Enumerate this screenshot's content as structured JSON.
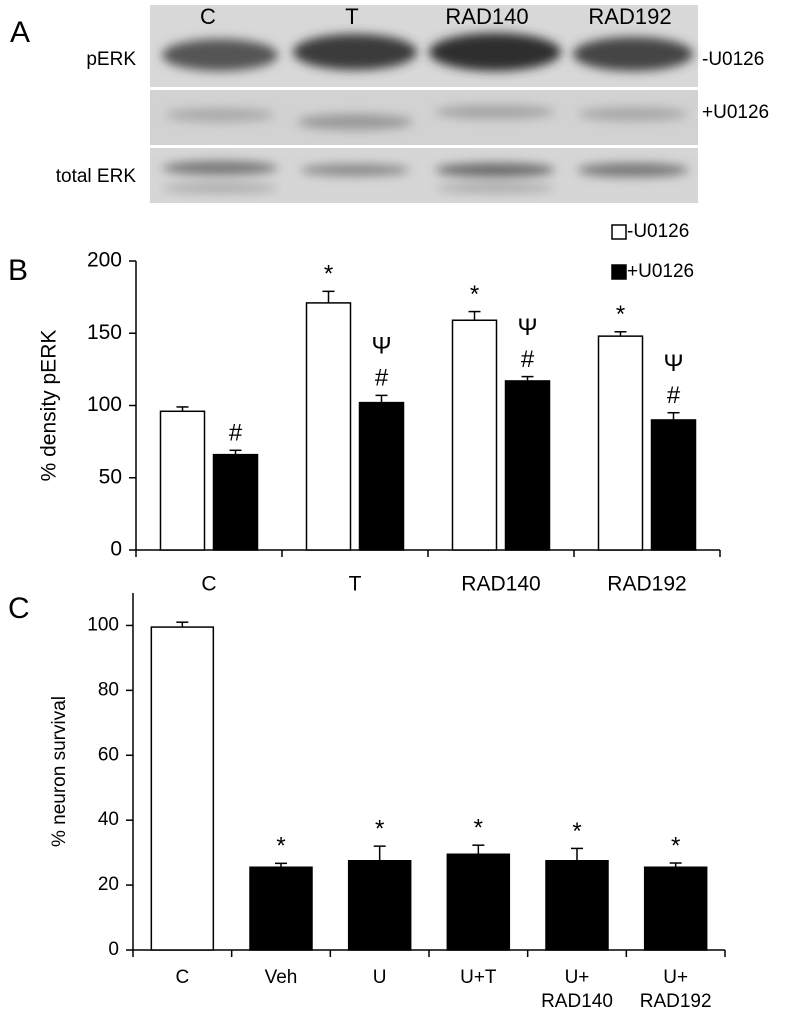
{
  "blot": {
    "panel_label": "A",
    "lanes": [
      "C",
      "T",
      "RAD140",
      "RAD192"
    ],
    "row_labels": [
      "pERK",
      "total ERK"
    ],
    "conditions": [
      "-U0126",
      "+U0126"
    ]
  },
  "chart_data": [
    {
      "type": "bar",
      "panel_label": "B",
      "ylabel": "% density pERK",
      "categories": [
        "C",
        "T",
        "RAD140",
        "RAD192"
      ],
      "series": [
        {
          "name": "-U0126",
          "color": "#ffffff",
          "values": [
            96,
            171,
            159,
            148
          ],
          "errors": [
            3,
            8,
            6,
            3
          ],
          "annotations": [
            null,
            "*",
            "*",
            "*"
          ]
        },
        {
          "name": "+U0126",
          "color": "#000000",
          "values": [
            66,
            102,
            117,
            90
          ],
          "errors": [
            3,
            5,
            3,
            5
          ],
          "annotations": [
            "#",
            "#",
            "#",
            "#"
          ],
          "annotations_2": [
            null,
            "Ψ",
            "Ψ",
            "Ψ"
          ]
        }
      ],
      "ylim": [
        0,
        200
      ],
      "yticks": [
        0,
        50,
        100,
        150,
        200
      ],
      "legend": "upper right"
    },
    {
      "type": "bar",
      "panel_label": "C",
      "ylabel": "% neuron survival",
      "categories": [
        [
          "C"
        ],
        [
          "Veh"
        ],
        [
          "U"
        ],
        [
          "U+T"
        ],
        [
          "U+",
          "RAD140"
        ],
        [
          "U+",
          "RAD192"
        ]
      ],
      "series": [
        {
          "colors": [
            "#ffffff",
            "#000000",
            "#000000",
            "#000000",
            "#000000",
            "#000000"
          ],
          "values": [
            99.5,
            25.5,
            27.5,
            29.5,
            27.5,
            25.5
          ],
          "errors": [
            1.5,
            1.2,
            4.5,
            2.8,
            3.8,
            1.3
          ],
          "annotations": [
            null,
            "*",
            "*",
            "*",
            "*",
            "*"
          ]
        }
      ],
      "ylim": [
        0,
        110
      ],
      "yticks": [
        0,
        20,
        40,
        60,
        80,
        100
      ]
    }
  ]
}
